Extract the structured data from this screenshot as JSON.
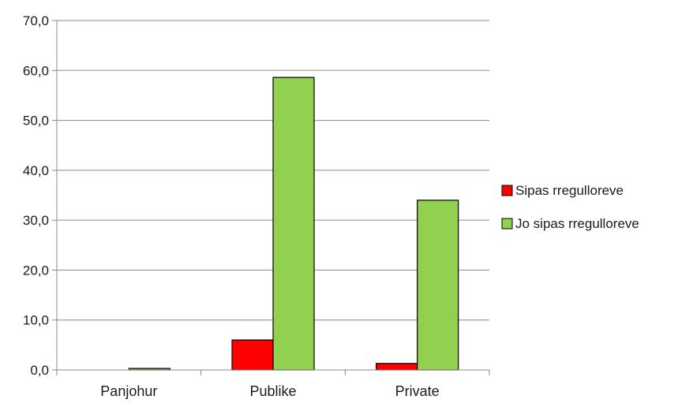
{
  "chart_data": {
    "type": "bar",
    "title": "",
    "xlabel": "",
    "ylabel": "",
    "categories": [
      "Panjohur",
      "Publike",
      "Private"
    ],
    "series": [
      {
        "name": "Sipas rregulloreve",
        "values": [
          0.0,
          6.0,
          1.3
        ],
        "color": "#ff0000"
      },
      {
        "name": "Jo sipas rregulloreve",
        "values": [
          0.3,
          58.6,
          34.0
        ],
        "color": "#92d050"
      }
    ],
    "ylim": [
      0,
      70
    ],
    "y_ticks": [
      "0,0",
      "10,0",
      "20,0",
      "30,0",
      "40,0",
      "50,0",
      "60,0",
      "70,0"
    ],
    "grid": true,
    "legend_position": "right"
  }
}
